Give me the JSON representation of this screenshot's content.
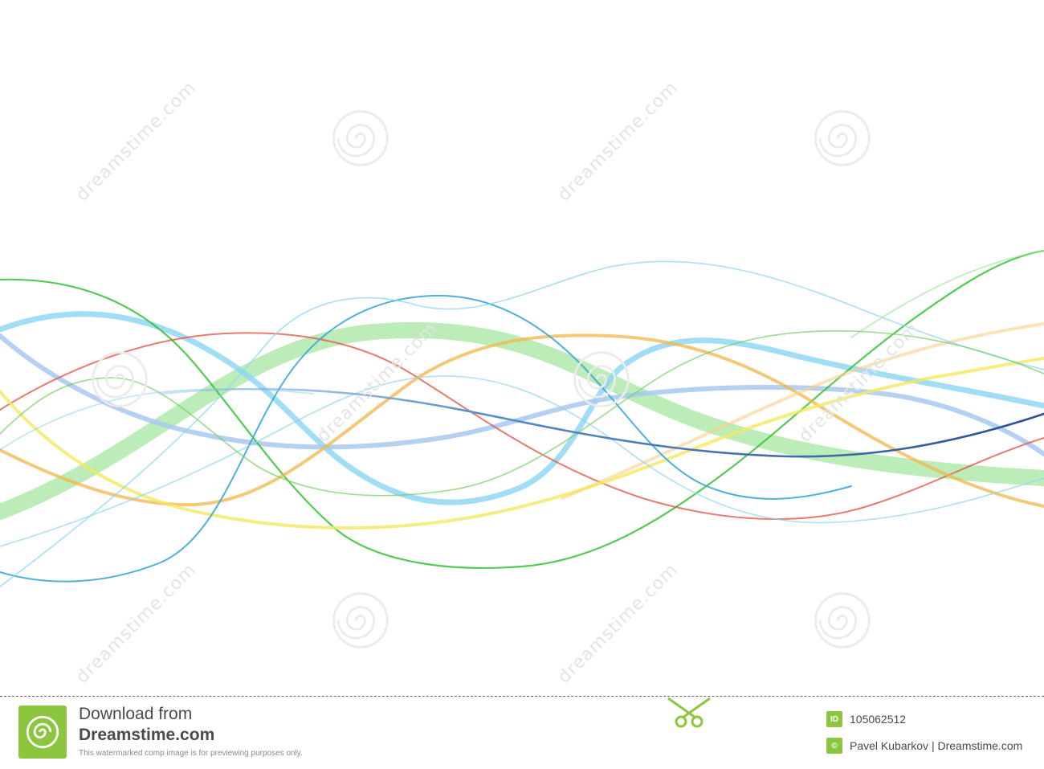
{
  "image": {
    "background": "#ffffff",
    "wave_colors": [
      "#34c234",
      "#8bd4f4",
      "#e05a4a",
      "#f2c36a",
      "#f4e860",
      "#a8c8f0",
      "#3aa8d8",
      "#9fe59a",
      "#2c5aa0"
    ]
  },
  "watermark": {
    "text": "dreamstime.com",
    "icon": "spiral-icon"
  },
  "footer": {
    "logo_icon": "dreamstime-spiral-icon",
    "download_label": "Download from",
    "brand": "Dreamstime.com",
    "preview_note": "This watermarked comp image is for previewing purposes only.",
    "scissors_icon": "scissors-icon",
    "id_badge": "ID",
    "image_id": "105062512",
    "copyright_badge": "©",
    "credit": "Pavel Kubarkov | Dreamstime.com",
    "accent_color": "#8cc63f"
  }
}
